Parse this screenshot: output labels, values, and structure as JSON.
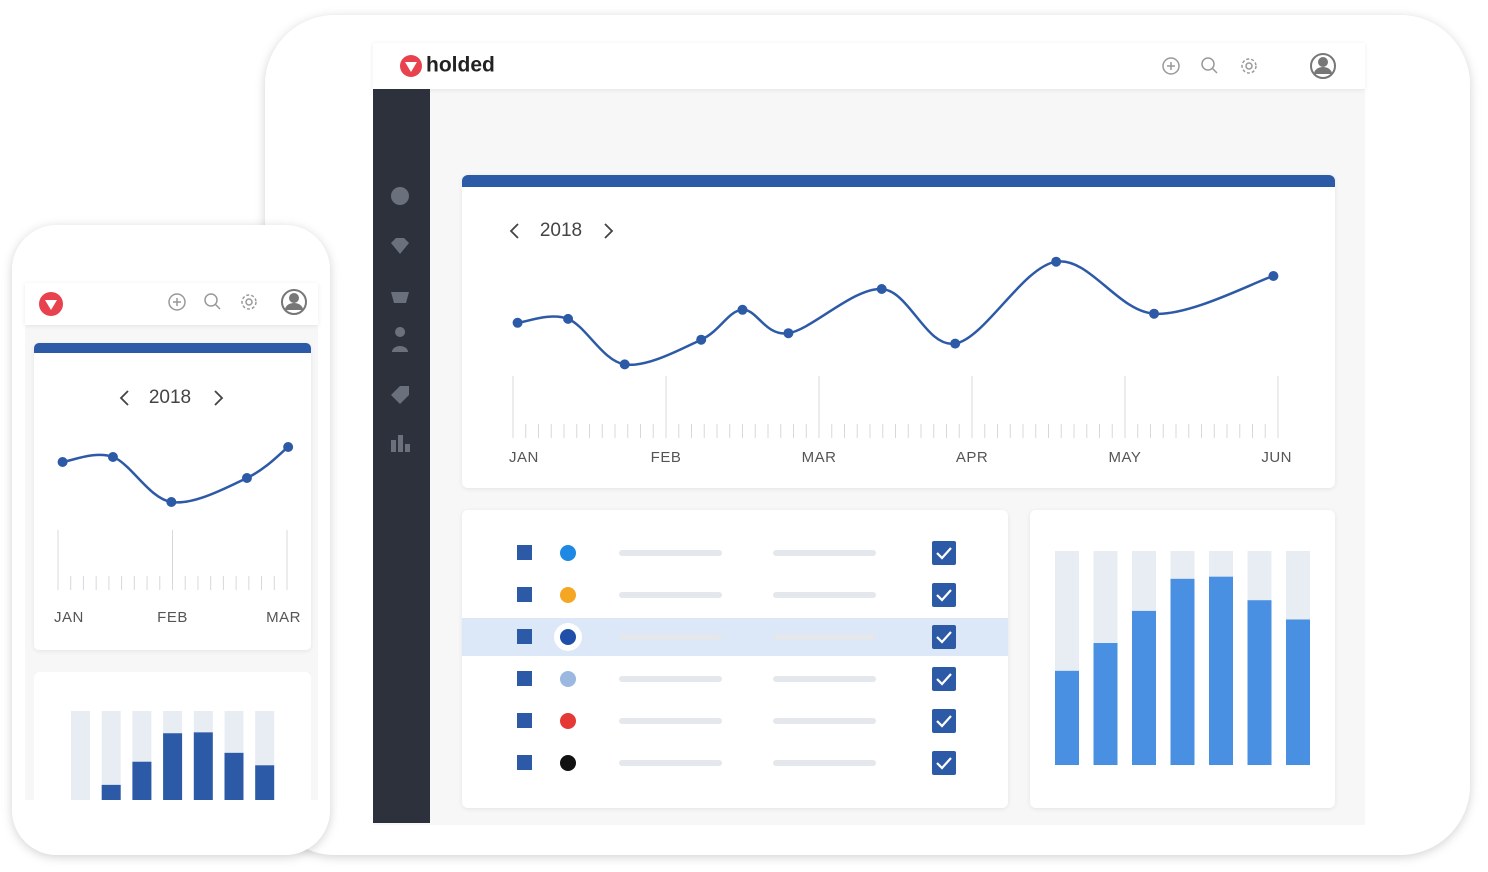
{
  "tablet": {
    "logo": "holded",
    "line_chart": {
      "type": "line",
      "year": "2018",
      "categories": [
        "JAN",
        "FEB",
        "MAR",
        "APR",
        "MAY",
        "JUN"
      ],
      "x": [
        0.03,
        0.36,
        0.73,
        1.23,
        1.5,
        1.8,
        2.41,
        2.89,
        3.55,
        4.19,
        4.97
      ],
      "values": [
        44,
        47,
        12,
        31,
        54,
        36,
        70,
        28,
        91,
        51,
        80
      ],
      "xlim": [
        0,
        5
      ],
      "ylim": [
        0,
        100
      ],
      "color": "#2d5aa6"
    },
    "bar_chart": {
      "type": "bar",
      "values": [
        44,
        57,
        72,
        87,
        88,
        77,
        68
      ],
      "ylim": [
        0,
        100
      ],
      "color": "#4a90e2"
    }
  },
  "phone": {
    "line_chart": {
      "type": "line",
      "year": "2018",
      "categories": [
        "JAN",
        "FEB",
        "MAR"
      ],
      "x": [
        0.04,
        0.48,
        0.99,
        1.65,
        2.01
      ],
      "values": [
        68,
        73,
        28,
        52,
        83
      ],
      "xlim": [
        0,
        2
      ],
      "ylim": [
        0,
        100
      ],
      "color": "#2d5aa6"
    },
    "bar_chart": {
      "type": "bar",
      "values": [
        0,
        17,
        43,
        75,
        76,
        53,
        39
      ],
      "ylim": [
        0,
        100
      ],
      "color": "#2d5aa6"
    }
  }
}
